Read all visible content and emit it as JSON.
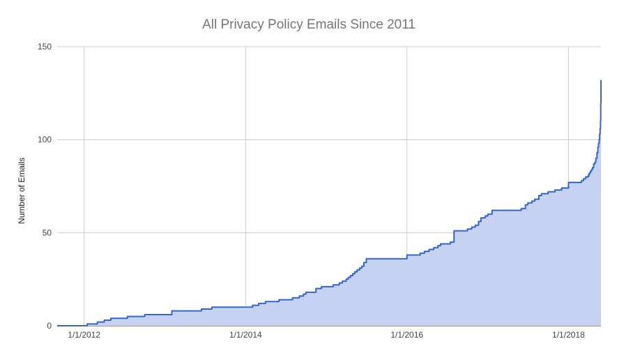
{
  "chart_data": {
    "type": "area",
    "title": "All Privacy Policy Emails Since 2011",
    "ylabel": "Number of Emails",
    "xlabel": "",
    "ylim": [
      0,
      150
    ],
    "xlim": [
      "2011-09-01",
      "2018-05-28"
    ],
    "y_ticks": [
      0,
      50,
      100,
      150
    ],
    "x_ticks": [
      {
        "date": "2012-01-01",
        "label": "1/1/2012"
      },
      {
        "date": "2014-01-01",
        "label": "1/1/2014"
      },
      {
        "date": "2016-01-01",
        "label": "1/1/2016"
      },
      {
        "date": "2018-01-01",
        "label": "1/1/2018"
      }
    ],
    "grid": true,
    "legend": "none",
    "colors": {
      "line": "#3366cc",
      "fill": "#c5d2f1"
    },
    "series": [
      {
        "x": [
          "2011-09-01",
          "2012-01-15",
          "2012-03-01",
          "2012-04-01",
          "2012-05-01",
          "2012-07-15",
          "2012-10-01",
          "2013-02-01",
          "2013-06-15",
          "2013-08-01",
          "2014-02-01",
          "2014-03-01",
          "2014-04-01",
          "2014-06-01",
          "2014-08-01",
          "2014-09-01",
          "2014-09-20",
          "2014-10-01",
          "2014-11-15",
          "2014-12-10",
          "2015-02-01",
          "2015-03-01",
          "2015-03-15",
          "2015-04-01",
          "2015-04-10",
          "2015-04-20",
          "2015-05-01",
          "2015-05-10",
          "2015-05-20",
          "2015-06-01",
          "2015-06-10",
          "2015-06-20",
          "2015-07-01",
          "2016-01-01",
          "2016-03-01",
          "2016-03-20",
          "2016-04-10",
          "2016-05-01",
          "2016-05-20",
          "2016-06-01",
          "2016-07-15",
          "2016-08-01",
          "2016-08-20",
          "2016-10-01",
          "2016-10-20",
          "2016-11-05",
          "2016-11-20",
          "2016-12-01",
          "2016-12-20",
          "2017-01-01",
          "2017-01-20",
          "2017-03-01",
          "2017-06-01",
          "2017-06-20",
          "2017-07-01",
          "2017-07-20",
          "2017-08-01",
          "2017-08-20",
          "2017-09-01",
          "2017-10-01",
          "2017-11-01",
          "2017-12-01",
          "2018-01-01",
          "2018-03-01",
          "2018-03-10",
          "2018-03-20",
          "2018-04-01",
          "2018-04-05",
          "2018-04-10",
          "2018-04-15",
          "2018-04-20",
          "2018-04-25",
          "2018-05-01",
          "2018-05-05",
          "2018-05-10",
          "2018-05-14",
          "2018-05-17",
          "2018-05-20",
          "2018-05-22",
          "2018-05-24",
          "2018-05-26",
          "2018-05-27",
          "2018-05-28"
        ],
        "values": [
          0,
          1,
          2,
          3,
          4,
          5,
          6,
          8,
          9,
          10,
          11,
          12,
          13,
          14,
          15,
          16,
          17,
          18,
          20,
          21,
          22,
          23,
          24,
          25,
          26,
          27,
          28,
          29,
          30,
          31,
          32,
          34,
          36,
          38,
          39,
          40,
          41,
          42,
          43,
          44,
          45,
          51,
          51,
          52,
          53,
          54,
          56,
          58,
          59,
          60,
          62,
          62,
          63,
          65,
          66,
          67,
          68,
          70,
          71,
          72,
          73,
          74,
          77,
          78,
          79,
          80,
          81,
          82,
          83,
          84,
          85,
          87,
          88,
          90,
          93,
          96,
          98,
          100,
          103,
          106,
          110,
          120,
          132
        ]
      }
    ]
  }
}
